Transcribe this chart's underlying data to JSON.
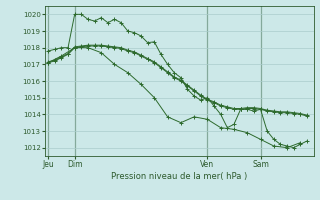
{
  "background_color": "#cce8e8",
  "grid_color": "#aacccc",
  "line_color": "#2d6a2d",
  "text_color": "#2d5a2d",
  "ylabel_ticks": [
    1012,
    1013,
    1014,
    1015,
    1016,
    1017,
    1018,
    1019,
    1020
  ],
  "ylim": [
    1011.5,
    1020.5
  ],
  "xlabel": "Pression niveau de la mer( hPa )",
  "day_labels": [
    "Jeu",
    "Dim",
    "Ven",
    "Sam"
  ],
  "day_positions": [
    0,
    4,
    24,
    32
  ],
  "xlim": [
    -0.5,
    40
  ],
  "series": [
    {
      "x": [
        0,
        1,
        2,
        3,
        4,
        5,
        6,
        7,
        8,
        9,
        10,
        11,
        12,
        13,
        14,
        15,
        16,
        17,
        18,
        19,
        20,
        21,
        22,
        23,
        24,
        25,
        26,
        27,
        28,
        29,
        30,
        31,
        32,
        33,
        34,
        35,
        36,
        37,
        38,
        39
      ],
      "y": [
        1017.8,
        1017.9,
        1018.0,
        1018.0,
        1020.0,
        1020.0,
        1019.7,
        1019.6,
        1019.8,
        1019.5,
        1019.7,
        1019.5,
        1019.0,
        1018.9,
        1018.7,
        1018.3,
        1018.35,
        1017.6,
        1017.0,
        1016.5,
        1016.2,
        1015.5,
        1015.1,
        1014.85,
        1015.0,
        1014.5,
        1014.0,
        1013.2,
        1013.4,
        1014.3,
        1014.3,
        1014.2,
        1014.3,
        1013.0,
        1012.5,
        1012.2,
        1012.1,
        1012.0,
        1012.2,
        1012.4
      ]
    },
    {
      "x": [
        0,
        1,
        2,
        3,
        4,
        5,
        6,
        7,
        8,
        9,
        10,
        11,
        12,
        13,
        14,
        15,
        16,
        17,
        18,
        19,
        20,
        21,
        22,
        23,
        24,
        25,
        26,
        27,
        28,
        29,
        30,
        31,
        32,
        33,
        34,
        35,
        36,
        37,
        38,
        39
      ],
      "y": [
        1017.1,
        1017.2,
        1017.4,
        1017.6,
        1018.0,
        1018.05,
        1018.1,
        1018.1,
        1018.1,
        1018.05,
        1018.0,
        1017.95,
        1017.8,
        1017.7,
        1017.5,
        1017.3,
        1017.1,
        1016.8,
        1016.5,
        1016.2,
        1016.0,
        1015.7,
        1015.4,
        1015.1,
        1014.85,
        1014.7,
        1014.5,
        1014.4,
        1014.3,
        1014.3,
        1014.35,
        1014.35,
        1014.3,
        1014.2,
        1014.15,
        1014.1,
        1014.1,
        1014.05,
        1014.0,
        1013.9
      ]
    },
    {
      "x": [
        0,
        1,
        2,
        3,
        4,
        5,
        6,
        7,
        8,
        9,
        10,
        11,
        12,
        13,
        14,
        15,
        16,
        17,
        18,
        19,
        20,
        21,
        22,
        23,
        24,
        25,
        26,
        27,
        28,
        29,
        30,
        31,
        32,
        33,
        34,
        35,
        36,
        37,
        38,
        39
      ],
      "y": [
        1017.15,
        1017.25,
        1017.45,
        1017.65,
        1018.05,
        1018.1,
        1018.15,
        1018.15,
        1018.15,
        1018.1,
        1018.05,
        1018.0,
        1017.85,
        1017.75,
        1017.55,
        1017.35,
        1017.15,
        1016.85,
        1016.55,
        1016.25,
        1016.05,
        1015.75,
        1015.45,
        1015.15,
        1014.9,
        1014.75,
        1014.55,
        1014.45,
        1014.35,
        1014.35,
        1014.4,
        1014.4,
        1014.35,
        1014.25,
        1014.2,
        1014.15,
        1014.15,
        1014.1,
        1014.05,
        1013.95
      ]
    },
    {
      "x": [
        0,
        2,
        4,
        6,
        8,
        10,
        12,
        14,
        16,
        18,
        20,
        22,
        24,
        26,
        28,
        30,
        32,
        34,
        36,
        38
      ],
      "y": [
        1017.1,
        1017.5,
        1018.0,
        1018.0,
        1017.7,
        1017.0,
        1016.5,
        1015.8,
        1015.0,
        1013.85,
        1013.5,
        1013.85,
        1013.7,
        1013.2,
        1013.1,
        1012.9,
        1012.5,
        1012.1,
        1012.0,
        1012.3
      ]
    }
  ]
}
